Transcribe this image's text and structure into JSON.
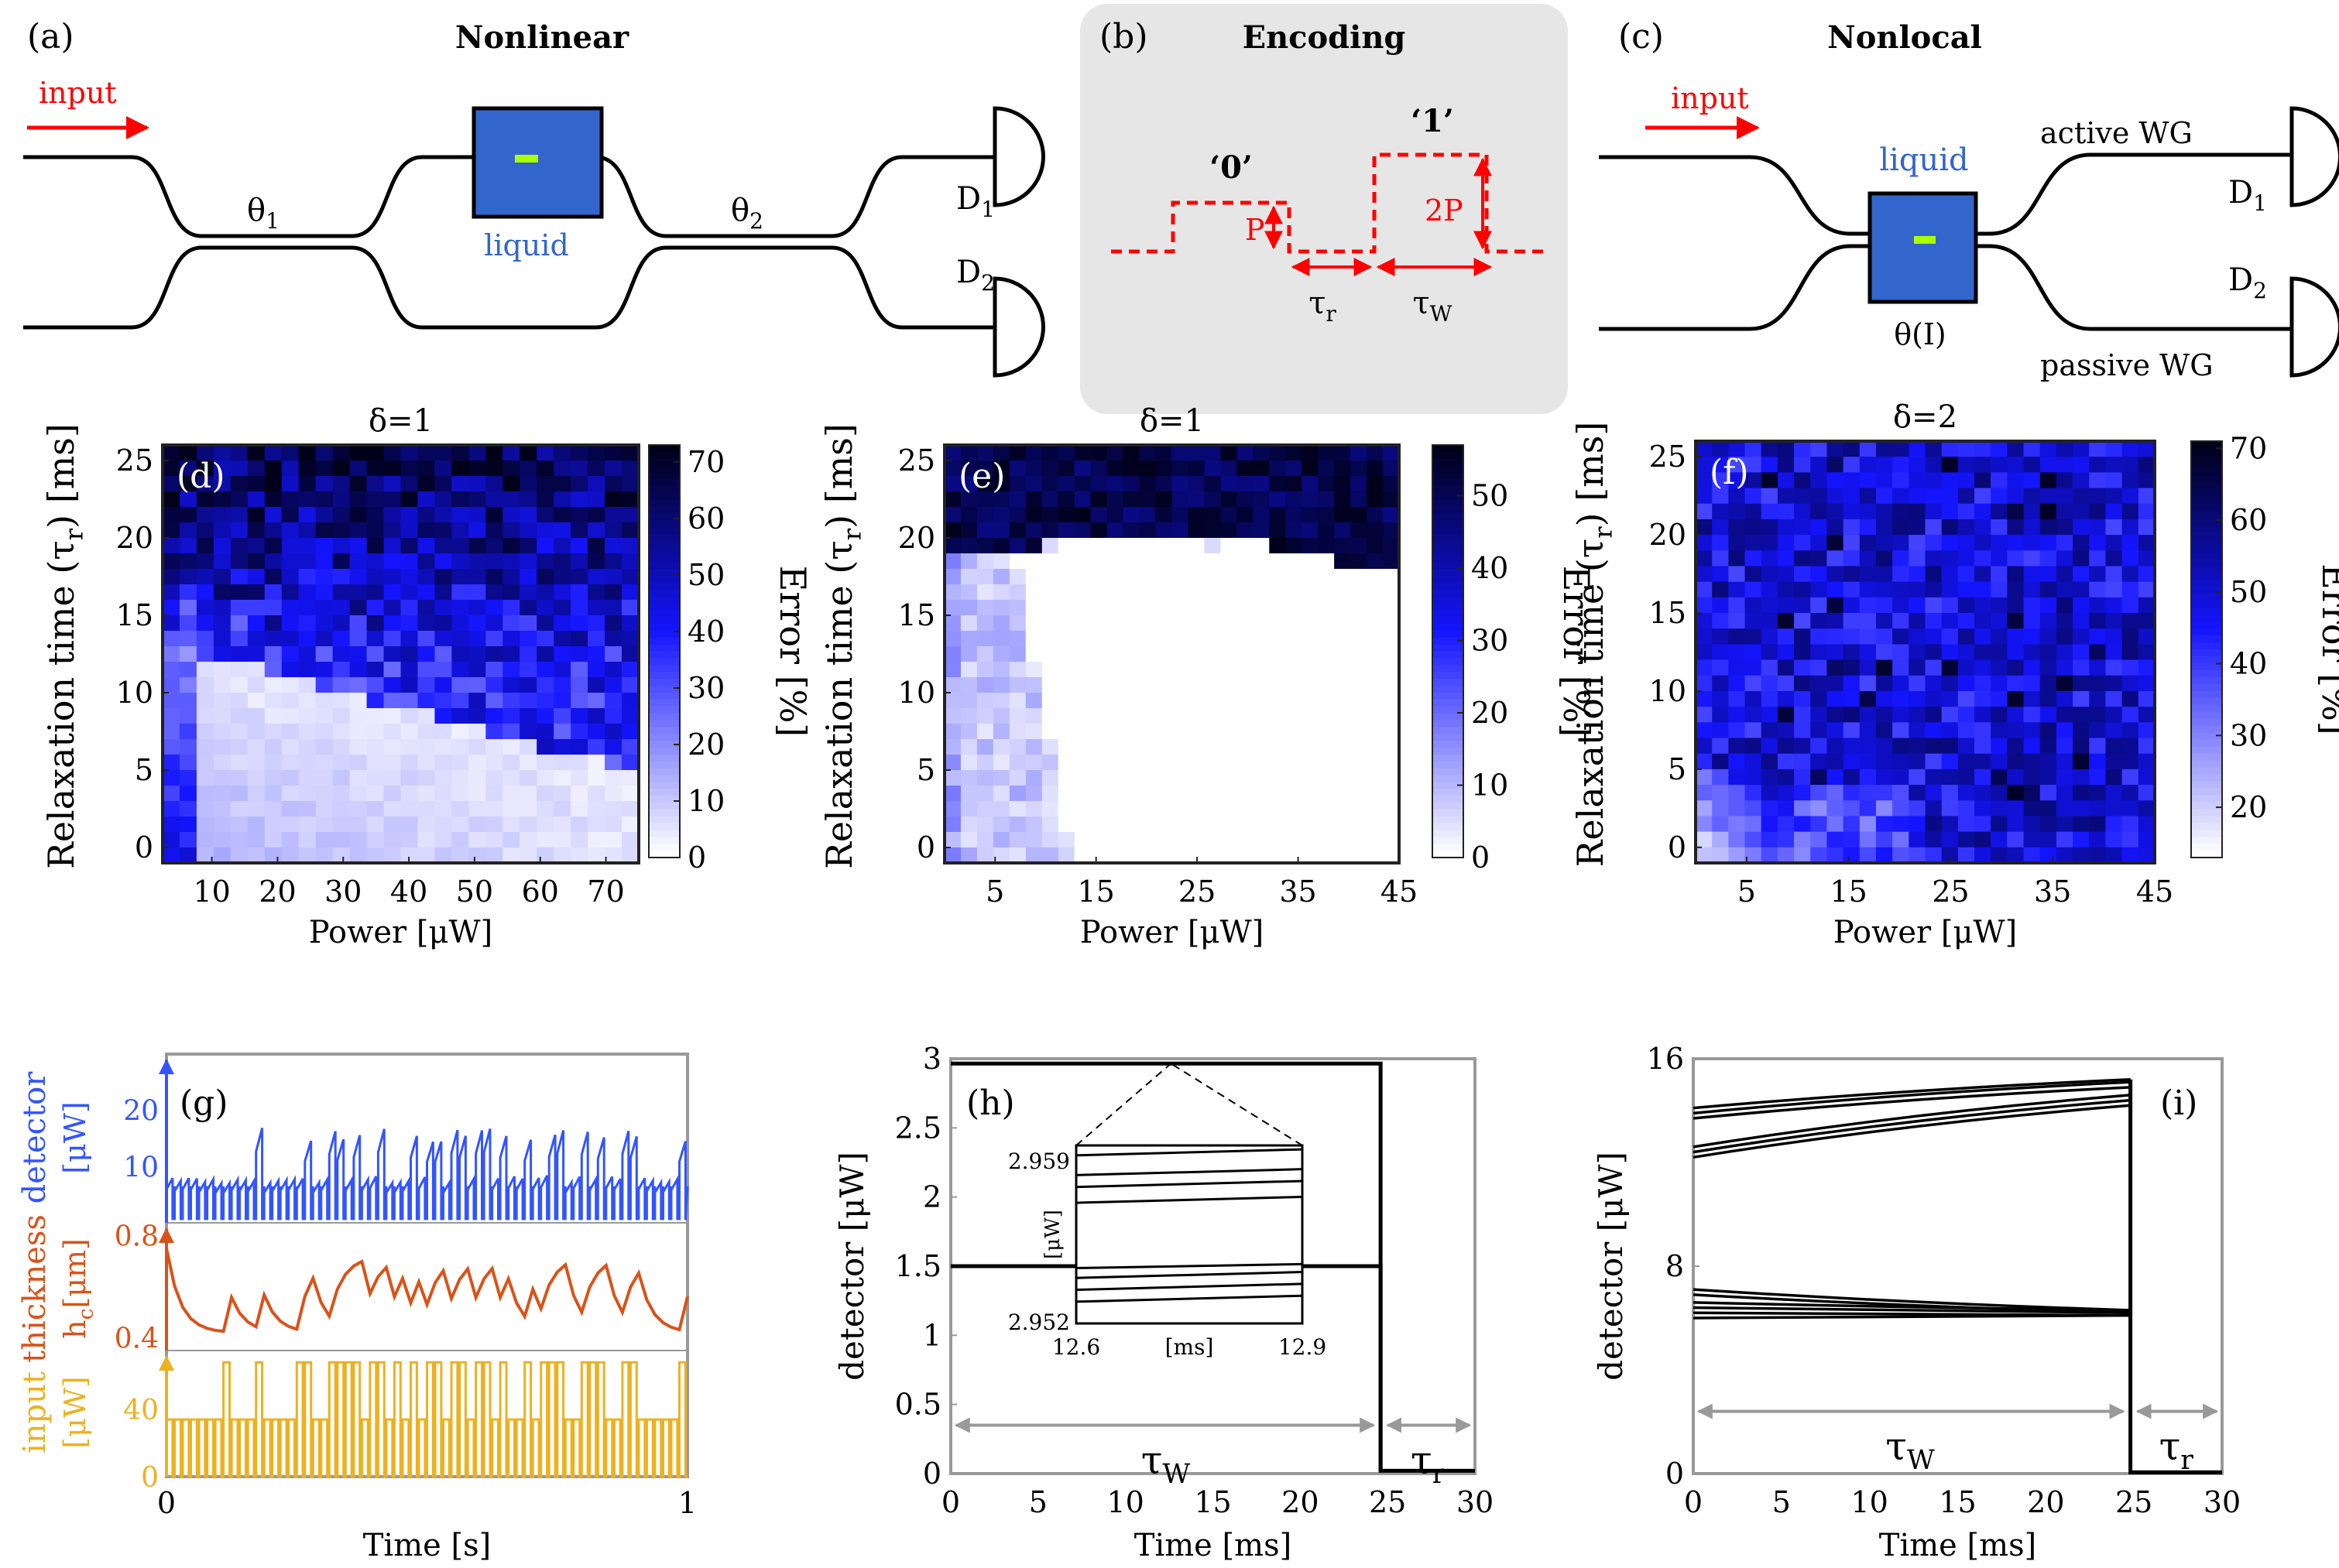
{
  "colors": {
    "red": "#ff0000",
    "blue": "#3366cc",
    "black": "#000000",
    "green": "#aaff00",
    "panelbg": "#e6e6e6",
    "orange": "#d95319",
    "yellow": "#edb120",
    "detblue": "#3355ff",
    "gray": "#999999"
  },
  "schematic": {
    "a": {
      "label": "(a)",
      "title": "Nonlinear",
      "input": "input",
      "theta1": "θ",
      "theta1_sub": "1",
      "theta2": "θ",
      "theta2_sub": "2",
      "liquid": "liquid",
      "d1": "D",
      "d1_sub": "1",
      "d2": "D",
      "d2_sub": "2"
    },
    "b": {
      "label": "(b)",
      "title": "Encoding",
      "zero": "‘0’",
      "one": "‘1’",
      "p": "P",
      "p2": "2P",
      "tau_r": "τ",
      "tau_r_sub": "r",
      "tau_w": "τ",
      "tau_w_sub": "W"
    },
    "c": {
      "label": "(c)",
      "title": "Nonlocal",
      "input": "input",
      "liquid": "liquid",
      "active": "active WG",
      "passive": "passive WG",
      "theta": "θ(I)",
      "d1": "D",
      "d1_sub": "1",
      "d2": "D",
      "d2_sub": "2"
    }
  },
  "chart_data": [
    {
      "id": "d",
      "type": "heatmap",
      "label": "(d)",
      "title": "δ=1",
      "xlabel": "Power [μW]",
      "ylabel": "Relaxation time (τ",
      "ylabel_sub": "r",
      "ylabel_end": ") [ms]",
      "xticks": [
        10,
        20,
        30,
        40,
        50,
        60,
        70
      ],
      "yticks": [
        0,
        5,
        10,
        15,
        20,
        25
      ],
      "xlim": [
        2.5,
        75
      ],
      "ylim": [
        -1,
        26
      ],
      "colorbar": {
        "label": "Error [%]",
        "ticks": [
          0,
          10,
          20,
          30,
          40,
          50,
          60,
          70
        ],
        "range": [
          0,
          73
        ]
      }
    },
    {
      "id": "e",
      "type": "heatmap",
      "label": "(e)",
      "title": "δ=1",
      "xlabel": "Power [μW]",
      "ylabel": "Relaxation time (τ",
      "ylabel_sub": "r",
      "ylabel_end": ") [ms]",
      "xticks": [
        5,
        15,
        25,
        35,
        45
      ],
      "yticks": [
        0,
        5,
        10,
        15,
        20,
        25
      ],
      "xlim": [
        0,
        45
      ],
      "ylim": [
        -1,
        26
      ],
      "colorbar": {
        "label": "Error [%]",
        "ticks": [
          0,
          10,
          20,
          30,
          40,
          50
        ],
        "range": [
          0,
          57
        ]
      }
    },
    {
      "id": "f",
      "type": "heatmap",
      "label": "(f)",
      "title": "δ=2",
      "xlabel": "Power [μW]",
      "ylabel": "Relaxation time (τ",
      "ylabel_sub": "r",
      "ylabel_end": ") [ms]",
      "xticks": [
        5,
        15,
        25,
        35,
        45
      ],
      "yticks": [
        0,
        5,
        10,
        15,
        20,
        25
      ],
      "xlim": [
        0,
        45
      ],
      "ylim": [
        -1,
        26
      ],
      "colorbar": {
        "label": "Error [%]",
        "ticks": [
          20,
          30,
          40,
          50,
          60,
          70
        ],
        "range": [
          13,
          71
        ]
      }
    },
    {
      "id": "g",
      "type": "line",
      "label": "(g)",
      "xlabel": "Time [s]",
      "xticks": [
        0,
        1
      ],
      "xlim": [
        0,
        1
      ],
      "panels": [
        {
          "name": "detector",
          "ylabel1": "detector",
          "ylabel2": "[μW]",
          "yticks": [
            10,
            20
          ],
          "ylim": [
            0,
            30
          ]
        },
        {
          "name": "thickness",
          "ylabel1": "thickness",
          "ylabel2": "h",
          "ylabel2_sub": "c",
          "ylabel2_end": "[μm]",
          "yticks": [
            0.4,
            0.8
          ],
          "ylim": [
            0.35,
            0.85
          ]
        },
        {
          "name": "input",
          "ylabel1": "input",
          "ylabel2": "[μW]",
          "yticks": [
            0,
            40
          ],
          "ylim": [
            0,
            75
          ]
        }
      ]
    },
    {
      "id": "h",
      "type": "line",
      "label": "(h)",
      "xlabel": "Time [ms]",
      "ylabel": "detector [μW]",
      "xticks": [
        0,
        5,
        10,
        15,
        20,
        25,
        30
      ],
      "yticks": [
        0,
        0.5,
        1,
        1.5,
        2,
        2.5,
        3
      ],
      "ytick_labels": [
        "0",
        "0.5",
        "1",
        "1.5",
        "2",
        "2.5",
        "3"
      ],
      "xlim": [
        0,
        30
      ],
      "ylim": [
        0,
        3
      ],
      "tau_w": "τ",
      "tau_w_sub": "W",
      "tau_r": "τ",
      "tau_r_sub": "r",
      "inset": {
        "xticks": [
          "12.6",
          "12.9"
        ],
        "xlabel": "[ms]",
        "yticks": [
          "2.959",
          "2.952"
        ],
        "ylabel": "[μW]",
        "xlim": [
          12.6,
          12.9
        ],
        "ylim": [
          2.951,
          2.96
        ]
      }
    },
    {
      "id": "i",
      "type": "line",
      "label": "(i)",
      "xlabel": "Time [ms]",
      "ylabel": "detector [μW]",
      "xticks": [
        0,
        5,
        10,
        15,
        20,
        25,
        30
      ],
      "yticks": [
        0,
        8,
        16
      ],
      "xlim": [
        0,
        30
      ],
      "ylim": [
        0,
        16
      ],
      "tau_w": "τ",
      "tau_w_sub": "W",
      "tau_r": "τ",
      "tau_r_sub": "r"
    }
  ]
}
